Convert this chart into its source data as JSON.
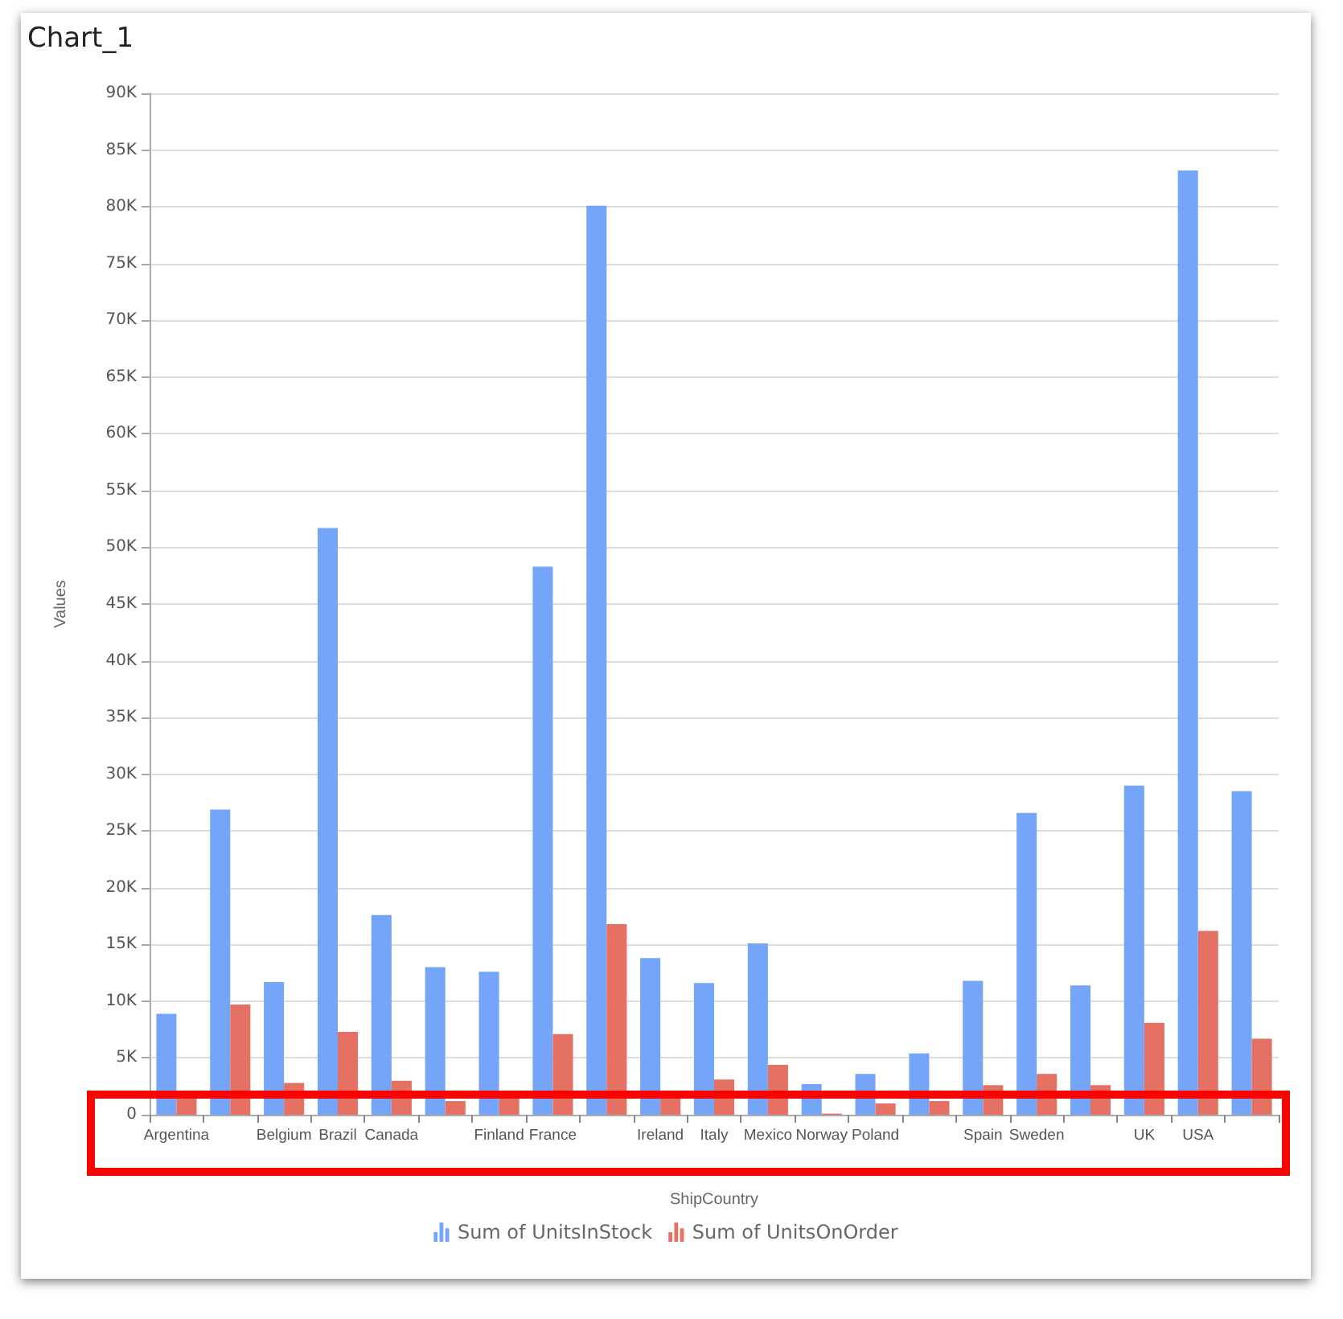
{
  "chart_data": {
    "type": "bar",
    "title": "Chart_1",
    "xlabel": "ShipCountry",
    "ylabel": "Values",
    "categories": [
      "Argentina",
      null,
      "Belgium",
      "Brazil",
      "Canada",
      null,
      "Finland",
      "France",
      null,
      "Ireland",
      "Italy",
      "Mexico",
      "Norway",
      "Poland",
      null,
      "Spain",
      "Sweden",
      null,
      "UK",
      "USA",
      null
    ],
    "series": [
      {
        "name": "Sum of UnitsInStock",
        "color": "#75a5f8",
        "values": [
          8.9,
          26.9,
          11.7,
          51.7,
          17.6,
          13.0,
          12.6,
          48.3,
          80.1,
          13.8,
          11.6,
          15.1,
          2.7,
          3.6,
          5.4,
          11.8,
          26.6,
          11.4,
          29.0,
          83.2,
          28.5
        ]
      },
      {
        "name": "Sum of UnitsOnOrder",
        "color": "#e57164",
        "values": [
          1.5,
          9.7,
          2.8,
          7.3,
          3.0,
          1.2,
          1.5,
          7.1,
          16.8,
          1.5,
          3.1,
          4.4,
          0.1,
          1.0,
          1.2,
          2.6,
          3.6,
          2.6,
          8.1,
          16.2,
          6.7
        ]
      }
    ],
    "ylim": [
      0,
      90
    ],
    "yticks": [
      0,
      {
        "value": 5,
        "label": "5K"
      },
      {
        "value": 10,
        "label": "10K"
      },
      {
        "value": 15,
        "label": "15K"
      },
      {
        "value": 20,
        "label": "20K"
      },
      {
        "value": 25,
        "label": "25K"
      },
      {
        "value": 30,
        "label": "30K"
      },
      {
        "value": 35,
        "label": "35K"
      },
      {
        "value": 40,
        "label": "40K"
      },
      {
        "value": 45,
        "label": "45K"
      },
      {
        "value": 50,
        "label": "50K"
      },
      {
        "value": 55,
        "label": "55K"
      },
      {
        "value": 60,
        "label": "60K"
      },
      {
        "value": 65,
        "label": "65K"
      },
      {
        "value": 70,
        "label": "70K"
      },
      {
        "value": 75,
        "label": "75K"
      },
      {
        "value": 80,
        "label": "80K"
      },
      {
        "value": 85,
        "label": "85K"
      },
      {
        "value": 90,
        "label": "90K"
      }
    ],
    "grid": "y",
    "legend": "bottom"
  }
}
